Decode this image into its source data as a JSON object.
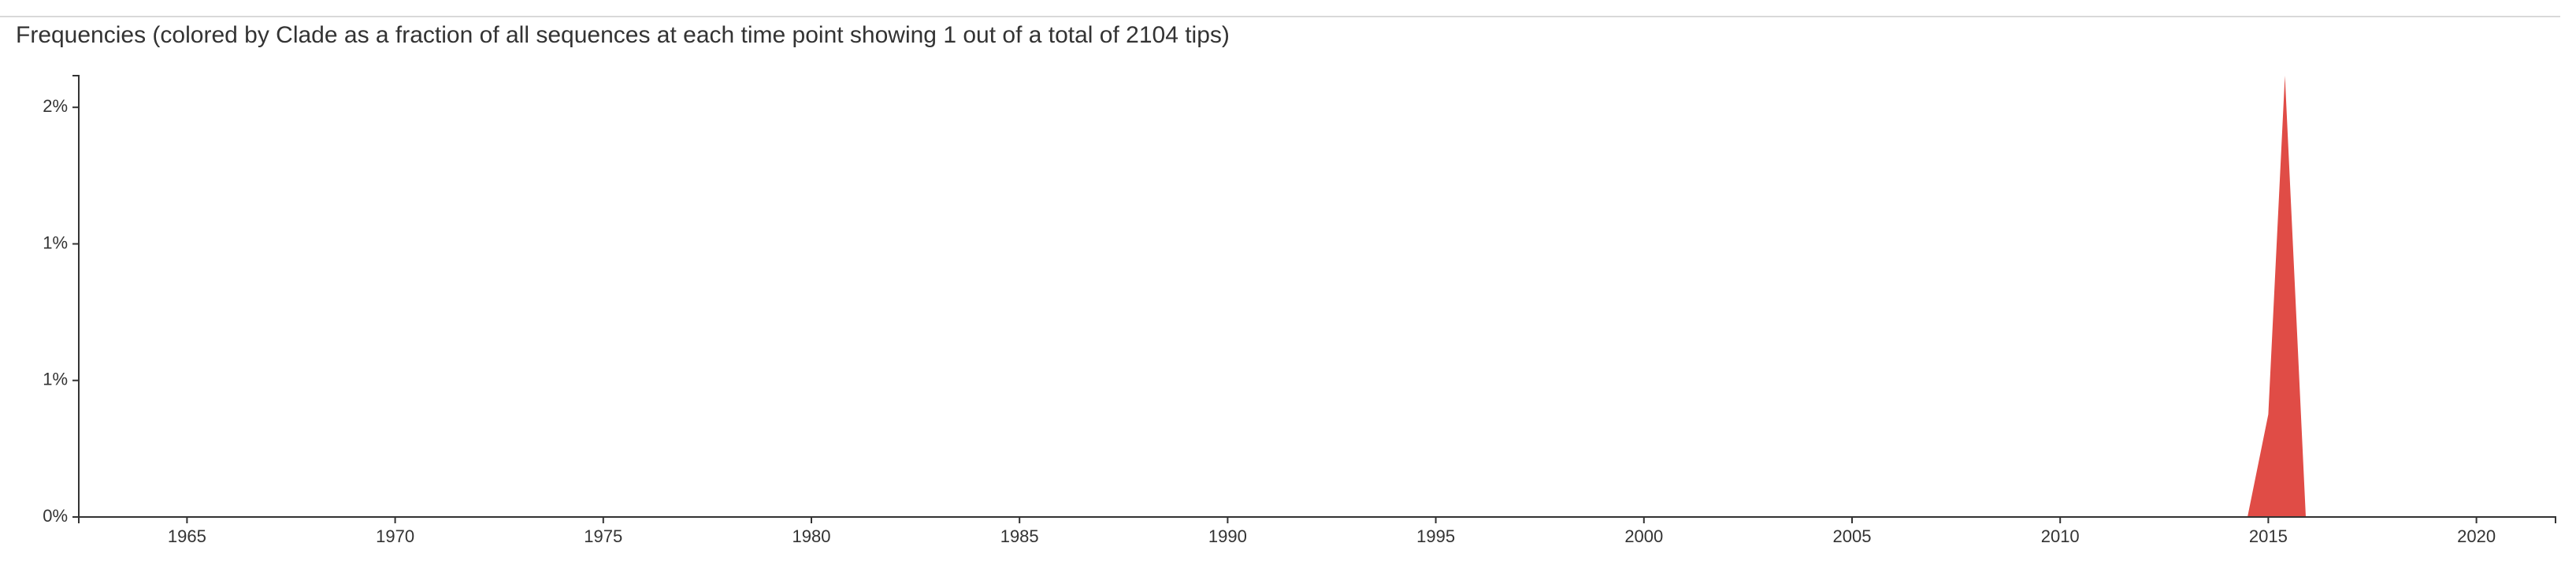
{
  "header": {
    "title": "Frequencies (colored by Clade as a fraction of all sequences at each time point showing 1 out of a total of 2104 tips)"
  },
  "chart_data": {
    "type": "area",
    "title": "Frequencies (colored by Clade as a fraction of all sequences at each time point showing 1 out of a total of 2104 tips)",
    "xlabel": "",
    "ylabel": "",
    "xlim": [
      1962.4,
      2021.9
    ],
    "ylim": [
      0,
      2.02
    ],
    "x_ticks": [
      {
        "value": 1965,
        "label": "1965"
      },
      {
        "value": 1970,
        "label": "1970"
      },
      {
        "value": 1975,
        "label": "1975"
      },
      {
        "value": 1980,
        "label": "1980"
      },
      {
        "value": 1985,
        "label": "1985"
      },
      {
        "value": 1990,
        "label": "1990"
      },
      {
        "value": 1995,
        "label": "1995"
      },
      {
        "value": 2000,
        "label": "2000"
      },
      {
        "value": 2005,
        "label": "2005"
      },
      {
        "value": 2010,
        "label": "2010"
      },
      {
        "value": 2015,
        "label": "2015"
      },
      {
        "value": 2020,
        "label": "2020"
      }
    ],
    "y_ticks": [
      {
        "value": 0,
        "label": "0%"
      },
      {
        "value": 0.625,
        "label": "1%"
      },
      {
        "value": 1.25,
        "label": "1%"
      },
      {
        "value": 1.875,
        "label": "2%"
      }
    ],
    "grid": false,
    "legend": "none",
    "series": [
      {
        "color": "#e04c46",
        "x": [
          2014.5,
          2015.0,
          2015.4,
          2015.9
        ],
        "y": [
          0,
          0.47,
          2.02,
          0
        ]
      }
    ]
  }
}
